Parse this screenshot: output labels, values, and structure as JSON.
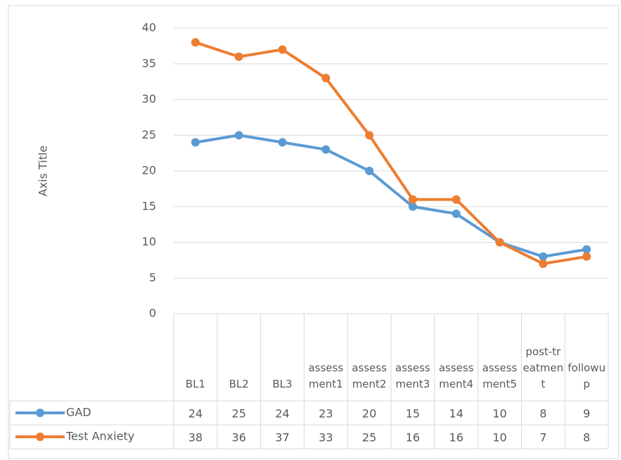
{
  "chart_data": {
    "type": "line",
    "y_axis_title": "Axis Title",
    "categories": [
      "BL1",
      "BL2",
      "BL3",
      "assessment1",
      "assessment2",
      "assessment3",
      "assessment4",
      "assessment5",
      "post-treatment",
      "followup"
    ],
    "series": [
      {
        "name": "GAD",
        "color": "#5b9bd5",
        "values": [
          24,
          25,
          24,
          23,
          20,
          15,
          14,
          10,
          8,
          9
        ]
      },
      {
        "name": "Test Anxiety",
        "color": "#ed7d31",
        "values": [
          38,
          36,
          37,
          33,
          25,
          16,
          16,
          10,
          7,
          8
        ]
      }
    ],
    "ylim": [
      0,
      40
    ],
    "yticks": [
      0,
      5,
      10,
      15,
      20,
      25,
      30,
      35,
      40
    ],
    "grid": true,
    "data_table": true
  }
}
